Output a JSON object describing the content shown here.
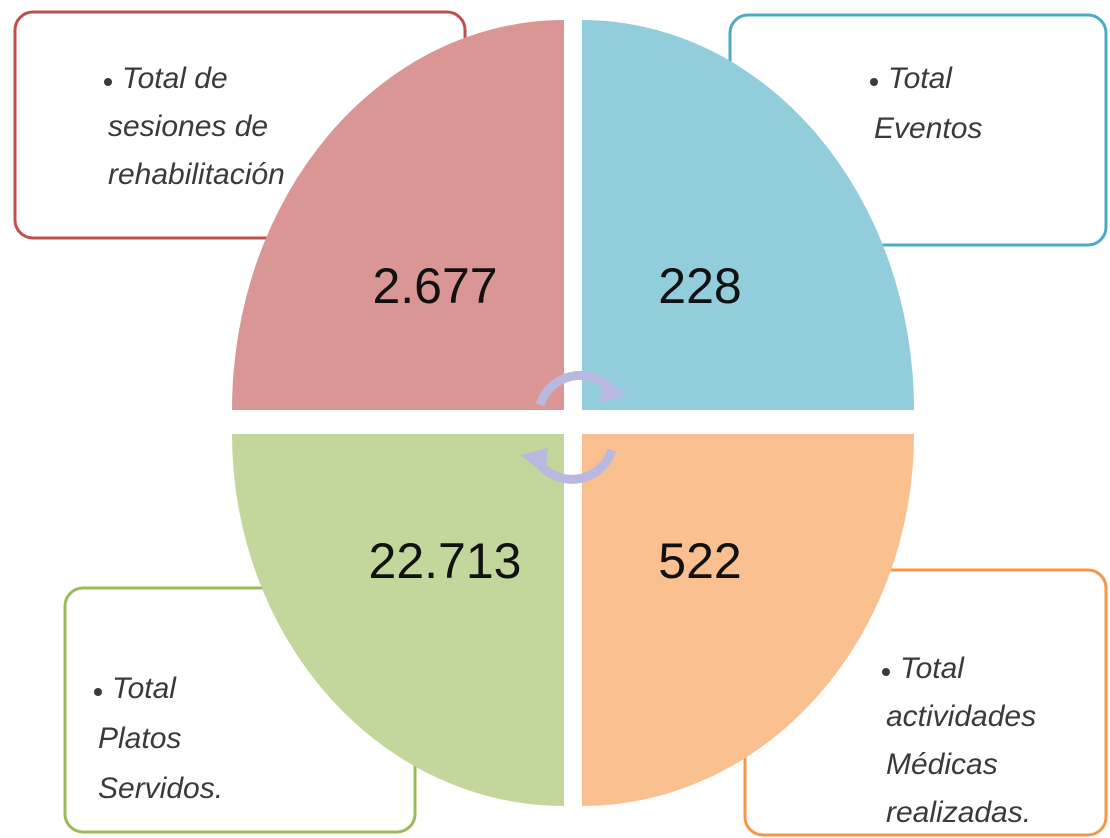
{
  "quadrants": [
    {
      "value": "2.677",
      "label_lines": [
        "Total de",
        "sesiones de",
        "rehabilitación"
      ]
    },
    {
      "value": "228",
      "label_lines": [
        "Total",
        "Eventos"
      ]
    },
    {
      "value": "22.713",
      "label_lines": [
        "Total",
        "Platos",
        "Servidos."
      ]
    },
    {
      "value": "522",
      "label_lines": [
        "Total",
        "actividades",
        "Médicas",
        "realizadas."
      ]
    }
  ]
}
